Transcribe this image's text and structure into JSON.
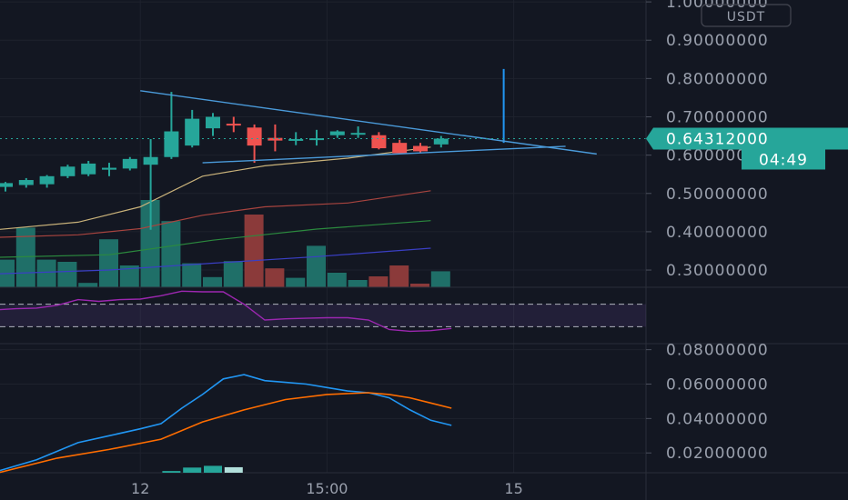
{
  "chart_data": [
    {
      "type": "candlestick",
      "name": "price-pane",
      "currency_unit": "USDT",
      "y_ticks": [
        "1.00000000",
        "0.90000000",
        "0.80000000",
        "0.70000000",
        "0.60000000",
        "0.50000000",
        "0.40000000",
        "0.30000000"
      ],
      "y_tick_values": [
        1.0,
        0.9,
        0.8,
        0.7,
        0.6,
        0.5,
        0.4,
        0.3
      ],
      "ylim": [
        0.255,
        1.005
      ],
      "x_tick_labels": [
        {
          "label": "12",
          "bar": 6.5
        },
        {
          "label": "15:00",
          "bar": 15.5
        },
        {
          "label": "15",
          "bar": 24.5
        }
      ],
      "last_price": {
        "label": "0.64312000",
        "value": 0.6431,
        "countdown": "04:49"
      },
      "candles": [
        {
          "o": 0.517,
          "h": 0.53,
          "l": 0.505,
          "c": 0.527
        },
        {
          "o": 0.522,
          "h": 0.54,
          "l": 0.515,
          "c": 0.535
        },
        {
          "o": 0.524,
          "h": 0.548,
          "l": 0.515,
          "c": 0.545
        },
        {
          "o": 0.545,
          "h": 0.575,
          "l": 0.54,
          "c": 0.57
        },
        {
          "o": 0.55,
          "h": 0.585,
          "l": 0.545,
          "c": 0.578
        },
        {
          "o": 0.562,
          "h": 0.58,
          "l": 0.545,
          "c": 0.567
        },
        {
          "o": 0.565,
          "h": 0.595,
          "l": 0.56,
          "c": 0.59
        },
        {
          "o": 0.575,
          "h": 0.642,
          "l": 0.405,
          "c": 0.595
        },
        {
          "o": 0.595,
          "h": 0.765,
          "l": 0.59,
          "c": 0.662
        },
        {
          "o": 0.625,
          "h": 0.718,
          "l": 0.62,
          "c": 0.695
        },
        {
          "o": 0.67,
          "h": 0.71,
          "l": 0.65,
          "c": 0.7
        },
        {
          "o": 0.682,
          "h": 0.7,
          "l": 0.66,
          "c": 0.68
        },
        {
          "o": 0.672,
          "h": 0.68,
          "l": 0.58,
          "c": 0.625
        },
        {
          "o": 0.645,
          "h": 0.68,
          "l": 0.61,
          "c": 0.638
        },
        {
          "o": 0.64,
          "h": 0.66,
          "l": 0.626,
          "c": 0.642
        },
        {
          "o": 0.642,
          "h": 0.666,
          "l": 0.625,
          "c": 0.644
        },
        {
          "o": 0.652,
          "h": 0.665,
          "l": 0.645,
          "c": 0.662
        },
        {
          "o": 0.655,
          "h": 0.675,
          "l": 0.645,
          "c": 0.658
        },
        {
          "o": 0.652,
          "h": 0.66,
          "l": 0.615,
          "c": 0.618
        },
        {
          "o": 0.632,
          "h": 0.64,
          "l": 0.605,
          "c": 0.605
        },
        {
          "o": 0.624,
          "h": 0.632,
          "l": 0.605,
          "c": 0.61
        },
        {
          "o": 0.628,
          "h": 0.65,
          "l": 0.62,
          "c": 0.643
        }
      ],
      "wick_spike": {
        "bar": 24.5,
        "low": 0.632,
        "high": 0.825
      },
      "volume": [
        0.38,
        0.82,
        0.38,
        0.35,
        0.06,
        0.66,
        0.3,
        1.2,
        0.91,
        0.33,
        0.14,
        0.36,
        1.0,
        0.26,
        0.13,
        0.57,
        0.2,
        0.1,
        0.15,
        0.3,
        0.05,
        0.22
      ],
      "volume_colors": [
        "teal",
        "teal",
        "teal",
        "teal",
        "teal",
        "teal",
        "teal",
        "teal",
        "teal",
        "teal",
        "teal",
        "teal",
        "red",
        "red",
        "teal",
        "teal",
        "teal",
        "teal",
        "red",
        "red",
        "red",
        "teal"
      ],
      "trend_lines": [
        {
          "color": "#4a9ad9",
          "from": {
            "bar": 6.5,
            "value": 0.768
          },
          "to": {
            "bar": 28.5,
            "value": 0.603
          }
        },
        {
          "color": "#4a9ad9",
          "from": {
            "bar": 9.5,
            "value": 0.58
          },
          "to": {
            "bar": 27.0,
            "value": 0.623
          }
        }
      ],
      "moving_averages": [
        {
          "color": "#c9b27a",
          "points": [
            [
              -0.5,
              0.405
            ],
            [
              3.5,
              0.425
            ],
            [
              6.5,
              0.465
            ],
            [
              9.5,
              0.545
            ],
            [
              12.5,
              0.572
            ],
            [
              16.5,
              0.592
            ],
            [
              20.5,
              0.621
            ]
          ]
        },
        {
          "color": "#a8443f",
          "points": [
            [
              -0.5,
              0.385
            ],
            [
              3.5,
              0.392
            ],
            [
              6.5,
              0.408
            ],
            [
              9.5,
              0.443
            ],
            [
              12.5,
              0.465
            ],
            [
              16.5,
              0.475
            ],
            [
              20.5,
              0.507
            ]
          ]
        },
        {
          "color": "#2b8a3e",
          "points": [
            [
              -0.5,
              0.333
            ],
            [
              5.0,
              0.34
            ],
            [
              10.0,
              0.378
            ],
            [
              15.0,
              0.407
            ],
            [
              20.5,
              0.429
            ]
          ]
        },
        {
          "color": "#3a3fc4",
          "points": [
            [
              -0.5,
              0.29
            ],
            [
              5.0,
              0.3
            ],
            [
              10.0,
              0.318
            ],
            [
              15.0,
              0.335
            ],
            [
              20.5,
              0.357
            ]
          ]
        }
      ],
      "colors": {
        "up": "#26a69a",
        "down": "#ef5350",
        "volume_up": "#1f6f68",
        "volume_down": "#8b3a3a",
        "grid": "#1e222d",
        "ma_fast": "#c9b27a"
      }
    },
    {
      "type": "line",
      "name": "rsi-pane",
      "band": [
        30,
        70
      ],
      "ylim": [
        0,
        100
      ],
      "line_color": "#9c27b0",
      "band_color": "#7e57c2",
      "points": [
        [
          -0.5,
          60
        ],
        [
          0.5,
          62
        ],
        [
          1.5,
          63
        ],
        [
          2.5,
          68
        ],
        [
          3.5,
          78
        ],
        [
          4.5,
          75
        ],
        [
          5.5,
          78
        ],
        [
          6.5,
          79
        ],
        [
          7.5,
          85
        ],
        [
          8.5,
          93
        ],
        [
          9.5,
          92
        ],
        [
          10.5,
          92
        ],
        [
          11.5,
          70
        ],
        [
          12.5,
          42
        ],
        [
          13.5,
          44
        ],
        [
          14.5,
          45
        ],
        [
          15.5,
          46
        ],
        [
          16.5,
          46
        ],
        [
          17.5,
          42
        ],
        [
          18.5,
          25
        ],
        [
          19.5,
          22
        ],
        [
          20.5,
          23
        ],
        [
          21.5,
          27
        ]
      ]
    },
    {
      "type": "line",
      "name": "macd-pane",
      "y_ticks": [
        "0.08000000",
        "0.06000000",
        "0.04000000",
        "0.02000000"
      ],
      "y_tick_values": [
        0.08,
        0.06,
        0.04,
        0.02
      ],
      "ylim": [
        0.0085,
        0.0835
      ],
      "series": [
        {
          "color": "#2196f3",
          "points": [
            [
              -0.5,
              0.009
            ],
            [
              1.5,
              0.016
            ],
            [
              3.5,
              0.026
            ],
            [
              5.0,
              0.03
            ],
            [
              6.5,
              0.034
            ],
            [
              7.5,
              0.037
            ],
            [
              8.5,
              0.046
            ],
            [
              9.5,
              0.054
            ],
            [
              10.5,
              0.063
            ],
            [
              11.5,
              0.0655
            ],
            [
              12.5,
              0.062
            ],
            [
              13.5,
              0.061
            ],
            [
              14.5,
              0.06
            ],
            [
              15.5,
              0.058
            ],
            [
              16.5,
              0.056
            ],
            [
              17.5,
              0.055
            ],
            [
              18.5,
              0.052
            ],
            [
              19.5,
              0.045
            ],
            [
              20.5,
              0.039
            ],
            [
              21.5,
              0.036
            ]
          ]
        },
        {
          "color": "#ff6d00",
          "points": [
            [
              -0.5,
              0.008
            ],
            [
              2.5,
              0.017
            ],
            [
              5.0,
              0.022
            ],
            [
              7.5,
              0.028
            ],
            [
              9.5,
              0.038
            ],
            [
              11.5,
              0.045
            ],
            [
              13.5,
              0.051
            ],
            [
              15.5,
              0.054
            ],
            [
              17.5,
              0.055
            ],
            [
              18.5,
              0.054
            ],
            [
              19.5,
              0.052
            ],
            [
              20.5,
              0.049
            ],
            [
              21.5,
              0.046
            ]
          ]
        }
      ],
      "histogram": [
        {
          "bar": 8,
          "value": 0.0095,
          "color": "#26a69a"
        },
        {
          "bar": 9,
          "value": 0.0115,
          "color": "#26a69a"
        },
        {
          "bar": 10,
          "value": 0.0125,
          "color": "#26a69a"
        },
        {
          "bar": 11,
          "value": 0.0117,
          "color": "#b2dfdb"
        },
        {
          "bar": 12,
          "value": 0.005,
          "color": "#b2dfdb"
        }
      ]
    }
  ]
}
